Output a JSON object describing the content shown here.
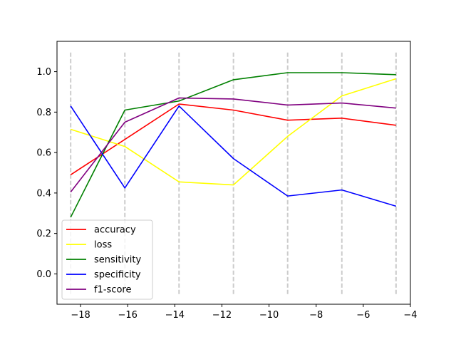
{
  "chart_data": {
    "type": "line",
    "title": "",
    "xlabel": "",
    "ylabel": "",
    "xlim": [
      -19.0,
      -4.0
    ],
    "ylim": [
      -0.15,
      1.15
    ],
    "xticks": [
      -18,
      -16,
      -14,
      -12,
      -10,
      -8,
      -6,
      -4
    ],
    "xtick_labels": [
      "−18",
      "−16",
      "−14",
      "−12",
      "−10",
      "−8",
      "−6",
      "−4"
    ],
    "yticks": [
      0.0,
      0.2,
      0.4,
      0.6,
      0.8,
      1.0
    ],
    "ytick_labels": [
      "0.0",
      "0.2",
      "0.4",
      "0.6",
      "0.8",
      "1.0"
    ],
    "grid": false,
    "legend_position": "lower-left",
    "vlines": {
      "x": [
        -18.42,
        -16.12,
        -13.82,
        -11.51,
        -9.21,
        -6.91,
        -4.61
      ],
      "ymin": -0.1,
      "ymax": 1.1,
      "color": "#cccccc",
      "style": "dashed"
    },
    "x": [
      -18.42,
      -16.12,
      -13.82,
      -11.51,
      -9.21,
      -6.91,
      -4.61
    ],
    "series": [
      {
        "name": "accuracy",
        "color": "#ff0000",
        "values": [
          0.49,
          0.665,
          0.84,
          0.81,
          0.76,
          0.77,
          0.735
        ]
      },
      {
        "name": "loss",
        "color": "#ffff00",
        "values": [
          0.715,
          0.63,
          0.455,
          0.44,
          0.68,
          0.88,
          0.965
        ]
      },
      {
        "name": "sensitivity",
        "color": "#008000",
        "values": [
          0.28,
          0.81,
          0.855,
          0.96,
          0.995,
          0.995,
          0.985
        ]
      },
      {
        "name": "specificity",
        "color": "#0000ff",
        "values": [
          0.83,
          0.425,
          0.83,
          0.57,
          0.385,
          0.415,
          0.335
        ]
      },
      {
        "name": "f1-score",
        "color": "#800080",
        "values": [
          0.405,
          0.75,
          0.87,
          0.865,
          0.835,
          0.845,
          0.82
        ]
      }
    ]
  }
}
